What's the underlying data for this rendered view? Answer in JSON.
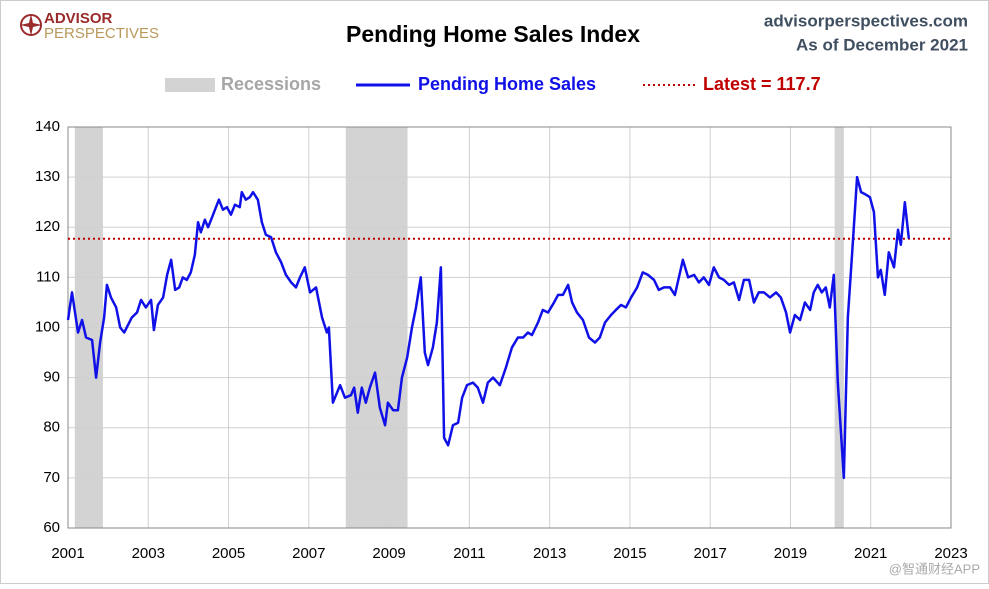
{
  "brand": {
    "line1": "ADVISOR",
    "line2": "PERSPECTIVES"
  },
  "source": {
    "site": "advisorperspectives.com",
    "date": "As of December 2021"
  },
  "watermark": "@智通财经APP",
  "chart_data": {
    "type": "line",
    "title": "Pending Home Sales Index",
    "recessions": {
      "name": "Recessions",
      "color": "#d3d3d3",
      "spans": [
        [
          2001.17,
          2001.87
        ],
        [
          2007.92,
          2009.46
        ],
        [
          2020.1,
          2020.33
        ]
      ]
    },
    "latest": {
      "name": "Latest = 117.7",
      "value": 117.7,
      "color": "#c00000"
    },
    "series": [
      {
        "name": "Pending Home Sales",
        "color": "#1010e8",
        "x": [
          2001.0,
          2001.1,
          2001.25,
          2001.35,
          2001.45,
          2001.6,
          2001.7,
          2001.8,
          2001.9,
          2001.97,
          2002.07,
          2002.2,
          2002.3,
          2002.4,
          2002.59,
          2002.72,
          2002.82,
          2002.94,
          2003.07,
          2003.14,
          2003.24,
          2003.37,
          2003.47,
          2003.57,
          2003.67,
          2003.77,
          2003.86,
          2003.96,
          2004.06,
          2004.16,
          2004.24,
          2004.31,
          2004.41,
          2004.49,
          2004.59,
          2004.76,
          2004.86,
          2004.96,
          2005.06,
          2005.16,
          2005.28,
          2005.33,
          2005.43,
          2005.53,
          2005.61,
          2005.73,
          2005.83,
          2005.93,
          2006.06,
          2006.18,
          2006.31,
          2006.43,
          2006.56,
          2006.68,
          2006.78,
          2006.9,
          2007.03,
          2007.18,
          2007.33,
          2007.45,
          2007.5,
          2007.6,
          2007.78,
          2007.9,
          2008.05,
          2008.13,
          2008.22,
          2008.32,
          2008.42,
          2008.52,
          2008.65,
          2008.77,
          2008.9,
          2008.97,
          2009.1,
          2009.22,
          2009.32,
          2009.45,
          2009.57,
          2009.67,
          2009.79,
          2009.89,
          2009.97,
          2010.09,
          2010.19,
          2010.29,
          2010.37,
          2010.47,
          2010.59,
          2010.72,
          2010.82,
          2010.94,
          2011.09,
          2011.21,
          2011.34,
          2011.46,
          2011.59,
          2011.76,
          2011.91,
          2012.06,
          2012.21,
          2012.34,
          2012.46,
          2012.56,
          2012.71,
          2012.83,
          2012.96,
          2013.11,
          2013.21,
          2013.33,
          2013.46,
          2013.56,
          2013.68,
          2013.83,
          2013.98,
          2014.13,
          2014.25,
          2014.38,
          2014.53,
          2014.65,
          2014.78,
          2014.9,
          2015.03,
          2015.18,
          2015.32,
          2015.45,
          2015.6,
          2015.72,
          2015.85,
          2016.0,
          2016.12,
          2016.22,
          2016.32,
          2016.45,
          2016.6,
          2016.72,
          2016.84,
          2016.97,
          2017.09,
          2017.22,
          2017.34,
          2017.47,
          2017.59,
          2017.72,
          2017.84,
          2017.97,
          2018.09,
          2018.21,
          2018.34,
          2018.49,
          2018.64,
          2018.76,
          2018.89,
          2018.99,
          2019.11,
          2019.24,
          2019.36,
          2019.49,
          2019.58,
          2019.68,
          2019.78,
          2019.88,
          2019.98,
          2020.08,
          2020.18,
          2020.33,
          2020.43,
          2020.53,
          2020.66,
          2020.76,
          2020.88,
          2020.98,
          2021.08,
          2021.18,
          2021.25,
          2021.35,
          2021.45,
          2021.58,
          2021.68,
          2021.75,
          2021.85,
          2021.95
        ],
        "values": [
          101.5,
          107,
          99,
          101.5,
          98,
          97.5,
          90,
          97,
          102,
          108.5,
          106,
          104,
          100,
          99,
          102,
          103,
          105.5,
          104,
          105.5,
          99.5,
          104.5,
          106,
          110.5,
          113.5,
          107.5,
          108,
          110,
          109.5,
          111,
          114.5,
          121,
          119,
          121.5,
          120,
          122,
          125.5,
          123.5,
          124,
          122.5,
          124.5,
          124,
          127,
          125.5,
          126,
          127,
          125.5,
          121,
          118.5,
          118,
          115,
          113,
          110.5,
          109,
          108,
          110,
          112,
          107,
          108,
          102,
          99,
          100,
          85,
          88.5,
          86,
          86.5,
          88,
          83,
          88,
          85,
          88,
          91,
          84,
          80.5,
          85,
          83.5,
          83.5,
          90,
          94,
          100,
          104,
          110,
          95,
          92.5,
          96,
          101,
          112,
          78,
          76.5,
          80.5,
          81,
          86,
          88.5,
          89,
          88,
          85,
          89,
          90,
          88.5,
          92,
          96,
          98,
          98,
          99,
          98.5,
          101,
          103.5,
          103,
          105,
          106.5,
          106.5,
          108.5,
          105,
          103,
          101.5,
          98,
          97,
          98,
          101,
          102.5,
          103.5,
          104.5,
          104,
          106,
          108,
          111,
          110.5,
          109.5,
          107.5,
          108,
          108,
          106.5,
          110,
          113.5,
          110,
          110.5,
          109,
          110,
          108.5,
          112,
          110,
          109.5,
          108.5,
          109,
          105.5,
          109.5,
          109.5,
          105,
          107,
          107,
          106,
          107,
          106,
          103,
          99,
          102.5,
          101.5,
          105,
          103.5,
          107,
          108.5,
          107,
          108,
          104,
          110.5,
          89,
          70,
          102,
          114,
          130,
          127,
          126.5,
          126,
          123,
          110,
          111.5,
          106.5,
          115,
          112,
          119.5,
          116.5,
          125,
          117.7
        ]
      }
    ],
    "xlim": [
      2001,
      2023
    ],
    "xticks": [
      2001,
      2003,
      2005,
      2007,
      2009,
      2011,
      2013,
      2015,
      2017,
      2019,
      2021,
      2023
    ],
    "ylim": [
      60,
      140
    ],
    "yticks": [
      60,
      70,
      80,
      90,
      100,
      110,
      120,
      130,
      140
    ],
    "grid": true
  }
}
